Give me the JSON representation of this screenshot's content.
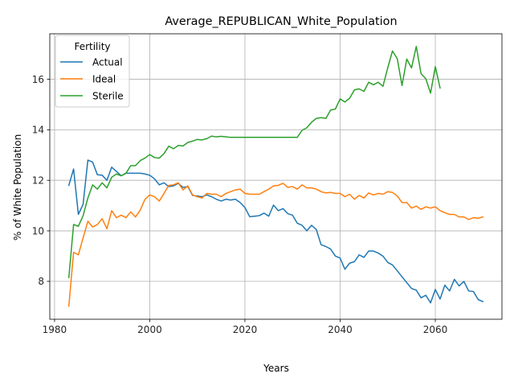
{
  "chart_data": {
    "type": "line",
    "title": "Average_REPUBLICAN_White_Population",
    "xlabel": "Years",
    "ylabel": "% of White Population",
    "xlim": [
      1979,
      2074
    ],
    "ylim": [
      6.5,
      17.8
    ],
    "xticks": [
      1980,
      2000,
      2020,
      2040,
      2060
    ],
    "yticks": [
      8,
      10,
      12,
      14,
      16
    ],
    "xtick_labels": [
      "1980",
      "2000",
      "2020",
      "2040",
      "2060"
    ],
    "ytick_labels": [
      "8",
      "10",
      "12",
      "14",
      "16"
    ],
    "grid": true,
    "legend": {
      "title": "Fertility",
      "placement": "upper-left"
    },
    "series": [
      {
        "name": "Actual",
        "color": "#1f77b4",
        "points": [
          [
            1983,
            11.8
          ],
          [
            1984,
            12.45
          ],
          [
            1985,
            10.65
          ],
          [
            1986,
            11.05
          ],
          [
            1987,
            12.8
          ],
          [
            1988,
            12.72
          ],
          [
            1989,
            12.22
          ],
          [
            1990,
            12.2
          ],
          [
            1991,
            12.0
          ],
          [
            1992,
            12.52
          ],
          [
            1993,
            12.35
          ],
          [
            1994,
            12.18
          ],
          [
            1995,
            12.28
          ],
          [
            1996,
            12.28
          ],
          [
            1997,
            12.28
          ],
          [
            1998,
            12.28
          ],
          [
            1999,
            12.25
          ],
          [
            2000,
            12.2
          ],
          [
            2001,
            12.06
          ],
          [
            2002,
            11.82
          ],
          [
            2003,
            11.9
          ],
          [
            2004,
            11.75
          ],
          [
            2005,
            11.78
          ],
          [
            2006,
            11.88
          ],
          [
            2007,
            11.72
          ],
          [
            2008,
            11.75
          ],
          [
            2009,
            11.4
          ],
          [
            2010,
            11.38
          ],
          [
            2011,
            11.35
          ],
          [
            2012,
            11.42
          ],
          [
            2013,
            11.35
          ],
          [
            2014,
            11.25
          ],
          [
            2015,
            11.18
          ],
          [
            2016,
            11.25
          ],
          [
            2017,
            11.22
          ],
          [
            2018,
            11.25
          ],
          [
            2019,
            11.12
          ],
          [
            2020,
            10.92
          ],
          [
            2021,
            10.56
          ],
          [
            2022,
            10.58
          ],
          [
            2023,
            10.6
          ],
          [
            2024,
            10.7
          ],
          [
            2025,
            10.58
          ],
          [
            2026,
            11.02
          ],
          [
            2027,
            10.8
          ],
          [
            2028,
            10.88
          ],
          [
            2029,
            10.68
          ],
          [
            2030,
            10.62
          ],
          [
            2031,
            10.3
          ],
          [
            2032,
            10.22
          ],
          [
            2033,
            10.0
          ],
          [
            2034,
            10.22
          ],
          [
            2035,
            10.05
          ],
          [
            2036,
            9.45
          ],
          [
            2037,
            9.38
          ],
          [
            2038,
            9.28
          ],
          [
            2039,
            9.0
          ],
          [
            2040,
            8.92
          ],
          [
            2041,
            8.48
          ],
          [
            2042,
            8.72
          ],
          [
            2043,
            8.78
          ],
          [
            2044,
            9.05
          ],
          [
            2045,
            8.95
          ],
          [
            2046,
            9.2
          ],
          [
            2047,
            9.2
          ],
          [
            2048,
            9.12
          ],
          [
            2049,
            9.0
          ],
          [
            2050,
            8.75
          ],
          [
            2051,
            8.65
          ],
          [
            2052,
            8.42
          ],
          [
            2053,
            8.18
          ],
          [
            2054,
            7.95
          ],
          [
            2055,
            7.72
          ],
          [
            2056,
            7.65
          ],
          [
            2057,
            7.35
          ],
          [
            2058,
            7.45
          ],
          [
            2059,
            7.15
          ],
          [
            2060,
            7.68
          ],
          [
            2061,
            7.3
          ],
          [
            2062,
            7.85
          ],
          [
            2063,
            7.62
          ],
          [
            2064,
            8.08
          ],
          [
            2065,
            7.82
          ],
          [
            2066,
            8.0
          ],
          [
            2067,
            7.62
          ],
          [
            2068,
            7.6
          ],
          [
            2069,
            7.28
          ],
          [
            2070,
            7.2
          ]
        ]
      },
      {
        "name": "Ideal",
        "color": "#ff7f0e",
        "points": [
          [
            1983,
            7.02
          ],
          [
            1984,
            9.15
          ],
          [
            1985,
            9.05
          ],
          [
            1986,
            9.72
          ],
          [
            1987,
            10.38
          ],
          [
            1988,
            10.15
          ],
          [
            1989,
            10.25
          ],
          [
            1990,
            10.48
          ],
          [
            1991,
            10.08
          ],
          [
            1992,
            10.8
          ],
          [
            1993,
            10.52
          ],
          [
            1994,
            10.62
          ],
          [
            1995,
            10.52
          ],
          [
            1996,
            10.75
          ],
          [
            1997,
            10.55
          ],
          [
            1998,
            10.82
          ],
          [
            1999,
            11.25
          ],
          [
            2000,
            11.42
          ],
          [
            2001,
            11.35
          ],
          [
            2002,
            11.18
          ],
          [
            2003,
            11.48
          ],
          [
            2004,
            11.8
          ],
          [
            2005,
            11.82
          ],
          [
            2006,
            11.9
          ],
          [
            2007,
            11.62
          ],
          [
            2008,
            11.78
          ],
          [
            2009,
            11.42
          ],
          [
            2010,
            11.35
          ],
          [
            2011,
            11.3
          ],
          [
            2012,
            11.48
          ],
          [
            2013,
            11.45
          ],
          [
            2014,
            11.45
          ],
          [
            2015,
            11.35
          ],
          [
            2016,
            11.48
          ],
          [
            2017,
            11.55
          ],
          [
            2018,
            11.62
          ],
          [
            2019,
            11.65
          ],
          [
            2020,
            11.48
          ],
          [
            2021,
            11.45
          ],
          [
            2022,
            11.45
          ],
          [
            2023,
            11.45
          ],
          [
            2024,
            11.55
          ],
          [
            2025,
            11.65
          ],
          [
            2026,
            11.78
          ],
          [
            2027,
            11.8
          ],
          [
            2028,
            11.88
          ],
          [
            2029,
            11.72
          ],
          [
            2030,
            11.75
          ],
          [
            2031,
            11.65
          ],
          [
            2032,
            11.82
          ],
          [
            2033,
            11.7
          ],
          [
            2034,
            11.7
          ],
          [
            2035,
            11.65
          ],
          [
            2036,
            11.55
          ],
          [
            2037,
            11.5
          ],
          [
            2038,
            11.52
          ],
          [
            2039,
            11.48
          ],
          [
            2040,
            11.48
          ],
          [
            2041,
            11.35
          ],
          [
            2042,
            11.45
          ],
          [
            2043,
            11.25
          ],
          [
            2044,
            11.4
          ],
          [
            2045,
            11.3
          ],
          [
            2046,
            11.5
          ],
          [
            2047,
            11.42
          ],
          [
            2048,
            11.48
          ],
          [
            2049,
            11.45
          ],
          [
            2050,
            11.55
          ],
          [
            2051,
            11.52
          ],
          [
            2052,
            11.38
          ],
          [
            2053,
            11.12
          ],
          [
            2054,
            11.12
          ],
          [
            2055,
            10.9
          ],
          [
            2056,
            10.98
          ],
          [
            2057,
            10.85
          ],
          [
            2058,
            10.95
          ],
          [
            2059,
            10.9
          ],
          [
            2060,
            10.95
          ],
          [
            2061,
            10.8
          ],
          [
            2062,
            10.72
          ],
          [
            2063,
            10.65
          ],
          [
            2064,
            10.65
          ],
          [
            2065,
            10.55
          ],
          [
            2066,
            10.55
          ],
          [
            2067,
            10.45
          ],
          [
            2068,
            10.52
          ],
          [
            2069,
            10.5
          ],
          [
            2070,
            10.55
          ]
        ]
      },
      {
        "name": "Sterile",
        "color": "#2ca02c",
        "points": [
          [
            1983,
            8.15
          ],
          [
            1984,
            10.25
          ],
          [
            1985,
            10.18
          ],
          [
            1986,
            10.6
          ],
          [
            1987,
            11.3
          ],
          [
            1988,
            11.82
          ],
          [
            1989,
            11.65
          ],
          [
            1990,
            11.9
          ],
          [
            1991,
            11.7
          ],
          [
            1992,
            12.12
          ],
          [
            1993,
            12.25
          ],
          [
            1994,
            12.18
          ],
          [
            1995,
            12.28
          ],
          [
            1996,
            12.58
          ],
          [
            1997,
            12.58
          ],
          [
            1998,
            12.78
          ],
          [
            1999,
            12.88
          ],
          [
            2000,
            13.02
          ],
          [
            2001,
            12.9
          ],
          [
            2002,
            12.88
          ],
          [
            2003,
            13.06
          ],
          [
            2004,
            13.35
          ],
          [
            2005,
            13.25
          ],
          [
            2006,
            13.38
          ],
          [
            2007,
            13.36
          ],
          [
            2008,
            13.5
          ],
          [
            2009,
            13.55
          ],
          [
            2010,
            13.62
          ],
          [
            2011,
            13.6
          ],
          [
            2012,
            13.65
          ],
          [
            2013,
            13.75
          ],
          [
            2014,
            13.72
          ],
          [
            2015,
            13.74
          ],
          [
            2016,
            13.72
          ],
          [
            2017,
            13.7
          ],
          [
            2018,
            13.7
          ],
          [
            2019,
            13.7
          ],
          [
            2020,
            13.7
          ],
          [
            2021,
            13.7
          ],
          [
            2022,
            13.7
          ],
          [
            2023,
            13.7
          ],
          [
            2024,
            13.7
          ],
          [
            2025,
            13.7
          ],
          [
            2026,
            13.7
          ],
          [
            2027,
            13.7
          ],
          [
            2028,
            13.7
          ],
          [
            2029,
            13.7
          ],
          [
            2030,
            13.7
          ],
          [
            2031,
            13.7
          ],
          [
            2032,
            13.98
          ],
          [
            2033,
            14.08
          ],
          [
            2034,
            14.3
          ],
          [
            2035,
            14.45
          ],
          [
            2036,
            14.48
          ],
          [
            2037,
            14.45
          ],
          [
            2038,
            14.78
          ],
          [
            2039,
            14.82
          ],
          [
            2040,
            15.22
          ],
          [
            2041,
            15.1
          ],
          [
            2042,
            15.25
          ],
          [
            2043,
            15.58
          ],
          [
            2044,
            15.62
          ],
          [
            2045,
            15.52
          ],
          [
            2046,
            15.88
          ],
          [
            2047,
            15.78
          ],
          [
            2048,
            15.88
          ],
          [
            2049,
            15.72
          ],
          [
            2050,
            16.45
          ],
          [
            2051,
            17.12
          ],
          [
            2052,
            16.82
          ],
          [
            2053,
            15.75
          ],
          [
            2054,
            16.8
          ],
          [
            2055,
            16.45
          ],
          [
            2056,
            17.3
          ],
          [
            2057,
            16.22
          ],
          [
            2058,
            16.02
          ],
          [
            2059,
            15.45
          ],
          [
            2060,
            16.5
          ],
          [
            2061,
            15.65
          ]
        ]
      }
    ]
  }
}
